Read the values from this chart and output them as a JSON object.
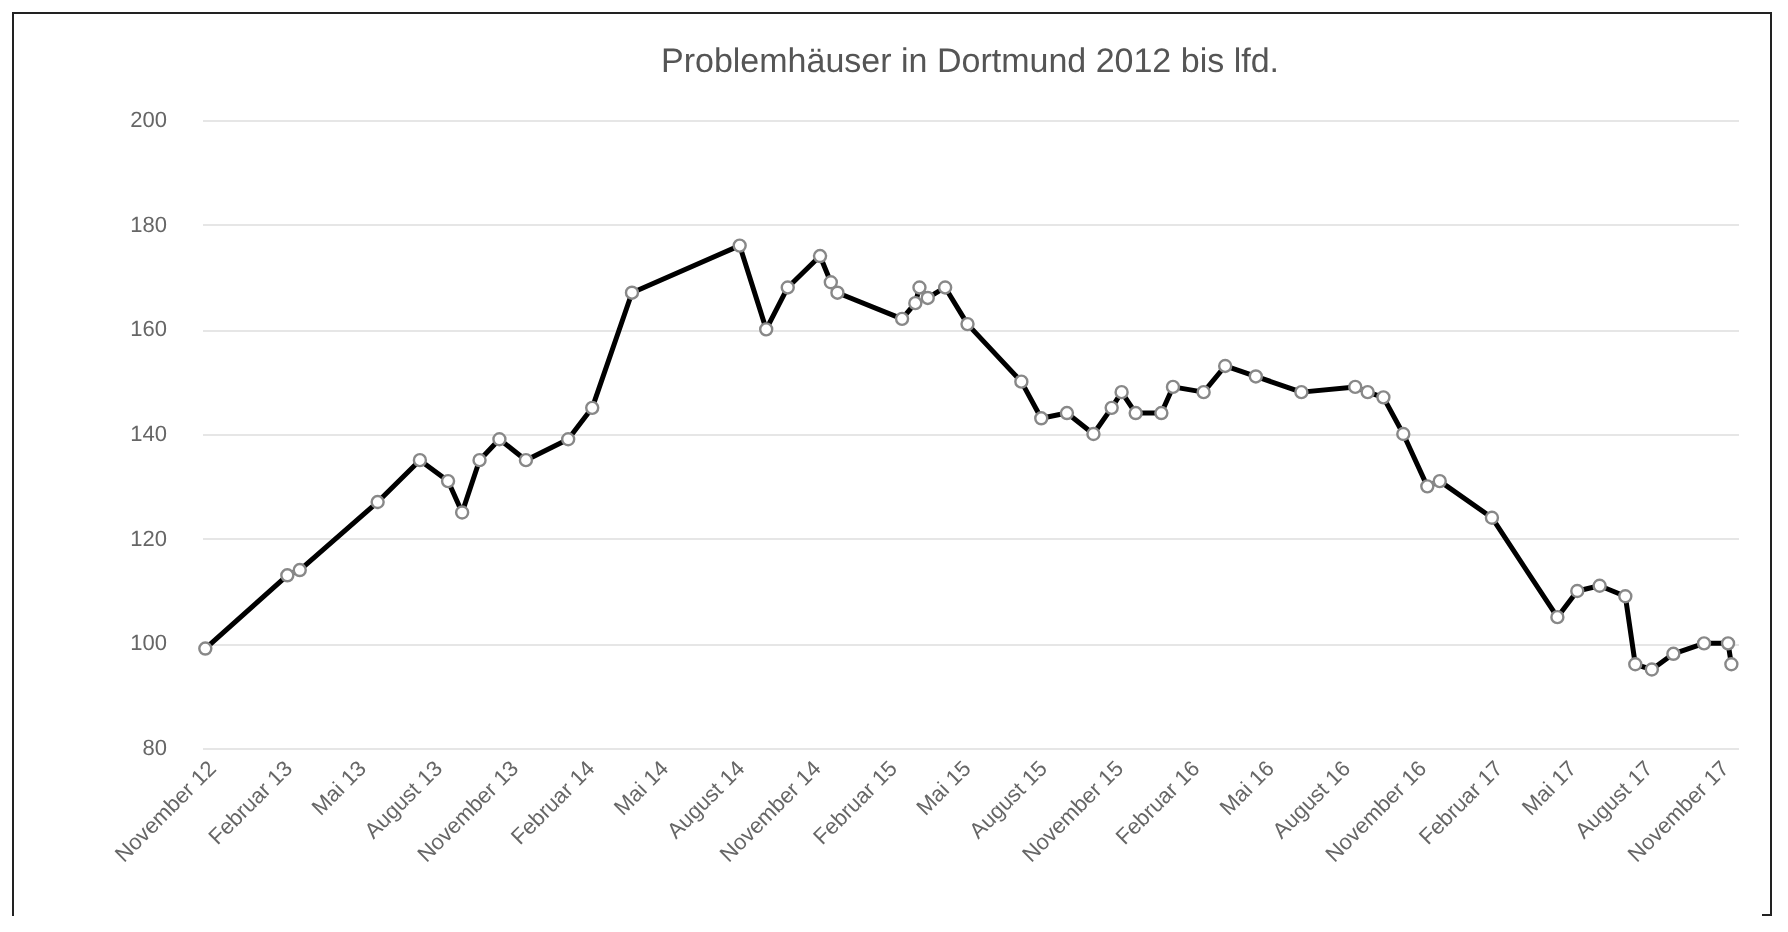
{
  "chart_data": {
    "type": "line",
    "title": "Problemhäuser in Dortmund 2012 bis lfd.",
    "x": [
      "2012-11-03",
      "2013-02-10",
      "2013-02-25",
      "2013-05-30",
      "2013-07-20",
      "2013-08-23",
      "2013-09-09",
      "2013-09-30",
      "2013-10-24",
      "2013-11-25",
      "2014-01-15",
      "2014-02-13",
      "2014-04-02",
      "2014-08-10",
      "2014-09-11",
      "2014-10-07",
      "2014-11-15",
      "2014-11-28",
      "2014-12-06",
      "2015-02-22",
      "2015-03-10",
      "2015-03-15",
      "2015-03-25",
      "2015-04-15",
      "2015-05-12",
      "2015-07-16",
      "2015-08-09",
      "2015-09-09",
      "2015-10-11",
      "2015-11-02",
      "2015-11-14",
      "2015-12-01",
      "2016-01-01",
      "2016-01-15",
      "2016-02-21",
      "2016-03-18",
      "2016-04-24",
      "2016-06-18",
      "2016-08-22",
      "2016-09-06",
      "2016-09-25",
      "2016-10-19",
      "2016-11-17",
      "2016-12-02",
      "2017-02-03",
      "2017-04-23",
      "2017-05-17",
      "2017-06-13",
      "2017-07-14",
      "2017-07-26",
      "2017-08-15",
      "2017-09-10",
      "2017-10-17",
      "2017-11-15",
      "2017-11-19"
    ],
    "series": [
      {
        "color": "#000000",
        "values": [
          99,
          113,
          114,
          127,
          135,
          131,
          125,
          135,
          139,
          135,
          139,
          145,
          167,
          176,
          160,
          168,
          174,
          169,
          167,
          162,
          165,
          168,
          166,
          168,
          161,
          150,
          143,
          144,
          140,
          145,
          148,
          144,
          144,
          149,
          148,
          153,
          151,
          148,
          149,
          148,
          147,
          140,
          130,
          131,
          124,
          105,
          110,
          111,
          109,
          96,
          95,
          98,
          100,
          100,
          96
        ]
      }
    ],
    "ylim": [
      80,
      200
    ],
    "yticks": [
      80,
      100,
      120,
      140,
      160,
      180,
      200
    ],
    "xlim": [
      "2012-10-30",
      "2017-11-27"
    ],
    "xticks": [
      {
        "value": "2012-11-01",
        "label": "November 12"
      },
      {
        "value": "2013-02-01",
        "label": "Februar 13"
      },
      {
        "value": "2013-05-01",
        "label": "Mai 13"
      },
      {
        "value": "2013-08-01",
        "label": "August 13"
      },
      {
        "value": "2013-11-01",
        "label": "November 13"
      },
      {
        "value": "2014-02-01",
        "label": "Februar 14"
      },
      {
        "value": "2014-05-01",
        "label": "Mai 14"
      },
      {
        "value": "2014-08-01",
        "label": "August 14"
      },
      {
        "value": "2014-11-01",
        "label": "November 14"
      },
      {
        "value": "2015-02-01",
        "label": "Februar 15"
      },
      {
        "value": "2015-05-01",
        "label": "Mai 15"
      },
      {
        "value": "2015-08-01",
        "label": "August 15"
      },
      {
        "value": "2015-11-01",
        "label": "November 15"
      },
      {
        "value": "2016-02-01",
        "label": "Februar 16"
      },
      {
        "value": "2016-05-01",
        "label": "Mai 16"
      },
      {
        "value": "2016-08-01",
        "label": "August 16"
      },
      {
        "value": "2016-11-01",
        "label": "November 16"
      },
      {
        "value": "2017-02-01",
        "label": "Februar 17"
      },
      {
        "value": "2017-05-01",
        "label": "Mai 17"
      },
      {
        "value": "2017-08-01",
        "label": "August 17"
      },
      {
        "value": "2017-11-01",
        "label": "November 17"
      }
    ],
    "grid": "y",
    "marker": "circle",
    "line_style": "solid"
  }
}
